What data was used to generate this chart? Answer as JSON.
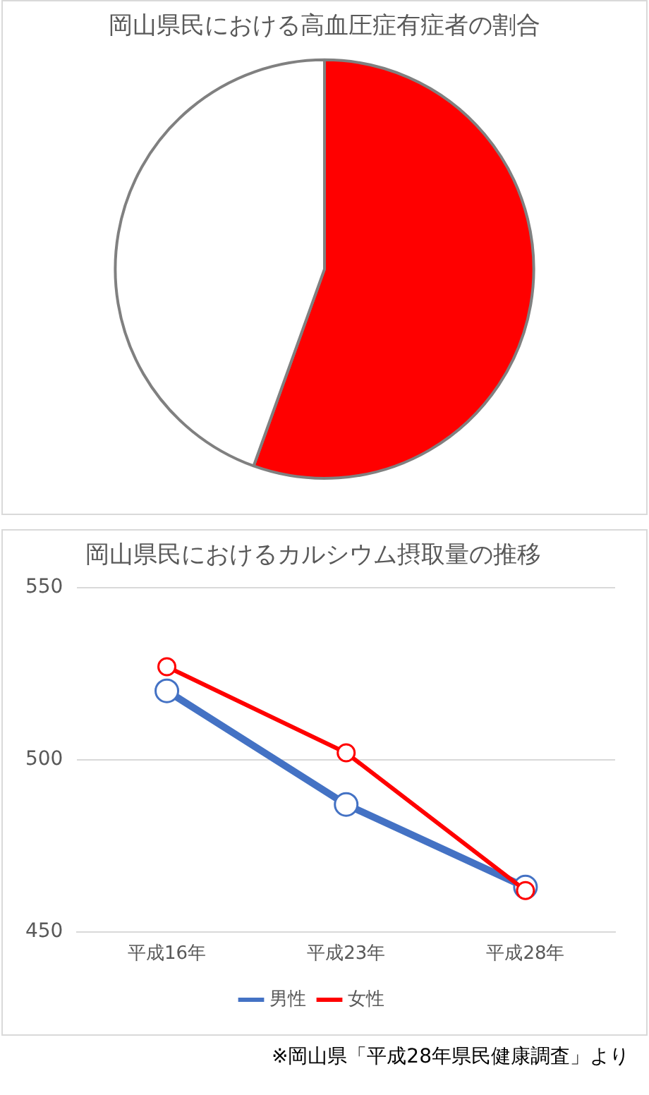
{
  "chart_data": [
    {
      "type": "pie",
      "title": "岡山県民における高血圧症有症者の割合",
      "categories": [
        null,
        null
      ],
      "values": [
        55.5,
        44.5
      ],
      "colors": [
        "#ff0000",
        "#ffffff"
      ]
    },
    {
      "type": "line",
      "title": "岡山県民におけるカルシウム摂取量の推移",
      "categories": [
        "平成16年",
        "平成23年",
        "平成28年"
      ],
      "series": [
        {
          "name": "男性",
          "color": "#4472c4",
          "values": [
            520,
            487,
            463
          ]
        },
        {
          "name": "女性",
          "color": "#ff0000",
          "values": [
            527,
            502,
            462
          ]
        }
      ],
      "ylim": [
        450,
        550
      ],
      "yticks": [
        450,
        500,
        550
      ],
      "grid": "y",
      "legend": "bottom",
      "marker": "circle",
      "line_style": "solid",
      "annotations": [
        "※岡山県「平成28年県民健康調査」より"
      ]
    }
  ]
}
